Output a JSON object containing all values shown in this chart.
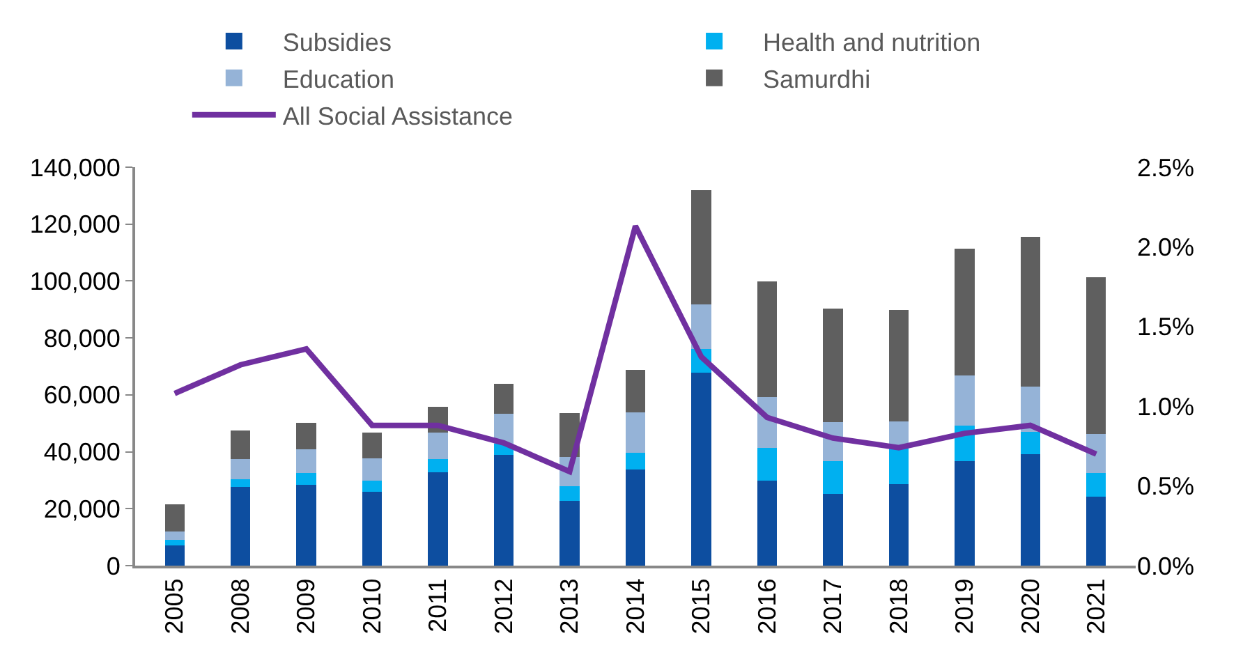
{
  "chart_data": {
    "type": "bar",
    "stacked": true,
    "categories": [
      "2005",
      "2008",
      "2009",
      "2010",
      "2011",
      "2012",
      "2013",
      "2014",
      "2015",
      "2016",
      "2017",
      "2018",
      "2019",
      "2020",
      "2021"
    ],
    "series": [
      {
        "name": "Subsidies",
        "color": "#0d4ea0",
        "values": [
          7000,
          27600,
          28500,
          26000,
          32800,
          38900,
          22800,
          33700,
          67800,
          29900,
          25200,
          28700,
          36600,
          39200,
          24300
        ]
      },
      {
        "name": "Health and nutrition",
        "color": "#00b0f0",
        "values": [
          2000,
          2800,
          4100,
          3900,
          4600,
          4000,
          5000,
          5900,
          8400,
          11400,
          11500,
          13700,
          12700,
          7900,
          8200
        ]
      },
      {
        "name": "Education",
        "color": "#95b3d7",
        "values": [
          3000,
          7000,
          8200,
          7800,
          9400,
          10500,
          10400,
          14200,
          15700,
          18000,
          13800,
          8200,
          17400,
          15900,
          13700
        ]
      },
      {
        "name": "Samurdhi",
        "color": "#5f5f5f",
        "values": [
          9500,
          10000,
          9300,
          9100,
          9000,
          10400,
          15400,
          15100,
          40000,
          40600,
          39700,
          39300,
          44600,
          52500,
          55100
        ]
      },
      {
        "name": "All Social Assistance",
        "type": "line",
        "axis": "y2",
        "color": "#7030a0",
        "values": [
          1.08,
          1.26,
          1.36,
          0.88,
          0.88,
          0.77,
          0.59,
          2.13,
          1.31,
          0.93,
          0.8,
          0.74,
          0.83,
          0.88,
          0.7
        ]
      }
    ],
    "ylim": [
      0,
      140000
    ],
    "yticks": [
      0,
      {
        "value": 20000,
        "label": "20,000"
      },
      {
        "value": 40000,
        "label": "40,000"
      },
      {
        "value": 60000,
        "label": "60,000"
      },
      {
        "value": 80000,
        "label": "80,000"
      },
      {
        "value": 100000,
        "label": "100,000"
      },
      {
        "value": 120000,
        "label": "120,000"
      },
      {
        "value": 140000,
        "label": "140,000"
      }
    ],
    "y2lim": [
      0,
      2.5
    ],
    "y2ticks": [
      {
        "value": 0,
        "label": "0.0%"
      },
      {
        "value": 0.5,
        "label": "0.5%"
      },
      {
        "value": 1.0,
        "label": "1.0%"
      },
      {
        "value": 1.5,
        "label": "1.5%"
      },
      {
        "value": 2.0,
        "label": "2.0%"
      },
      {
        "value": 2.5,
        "label": "2.5%"
      }
    ],
    "legend": "top",
    "marker": "none",
    "line_style": "solid"
  }
}
